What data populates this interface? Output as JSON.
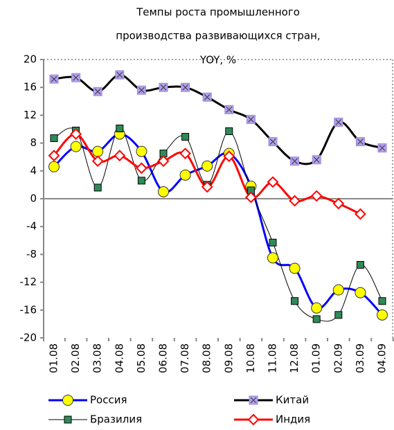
{
  "chart_data": {
    "type": "line",
    "title": [
      "Темпы роста промышленного",
      "производства развивающихся стран,",
      "YOY, %"
    ],
    "categories": [
      "01.08",
      "02.08",
      "03.08",
      "04.08",
      "05.08",
      "06.08",
      "07.08",
      "08.08",
      "09.08",
      "10.08",
      "11.08",
      "12.08",
      "01.09",
      "02.09",
      "03.09",
      "04.09"
    ],
    "ylim": [
      -20,
      20
    ],
    "yticks": [
      -20,
      -16,
      -12,
      -8,
      -4,
      0,
      4,
      8,
      12,
      16,
      20
    ],
    "series": [
      {
        "name": "Россия",
        "color": "#0000ff",
        "marker": "circle",
        "values": [
          4.6,
          7.5,
          6.8,
          9.3,
          6.8,
          1.0,
          3.4,
          4.7,
          6.5,
          1.8,
          -8.5,
          -10.0,
          -15.7,
          -13.1,
          -13.5,
          -16.7
        ]
      },
      {
        "name": "Китай",
        "color": "#000000",
        "marker": "x-square",
        "values": [
          17.2,
          17.4,
          15.4,
          17.8,
          15.6,
          16.0,
          16.0,
          14.6,
          12.8,
          11.4,
          8.2,
          5.4,
          5.6,
          11.0,
          8.2,
          7.3
        ]
      },
      {
        "name": "Бразилия",
        "color": "#000000",
        "marker": "square",
        "values": [
          8.7,
          9.8,
          1.6,
          10.1,
          2.6,
          6.5,
          8.9,
          2.0,
          9.7,
          1.2,
          -6.3,
          -14.7,
          -17.3,
          -16.7,
          -9.5,
          -14.7
        ]
      },
      {
        "name": "Индия",
        "color": "#ff0000",
        "marker": "diamond",
        "values": [
          6.2,
          9.3,
          5.4,
          6.2,
          4.4,
          5.4,
          6.5,
          1.7,
          6.1,
          0.2,
          2.4,
          -0.3,
          0.4,
          -0.7,
          -2.2,
          null
        ]
      }
    ]
  }
}
